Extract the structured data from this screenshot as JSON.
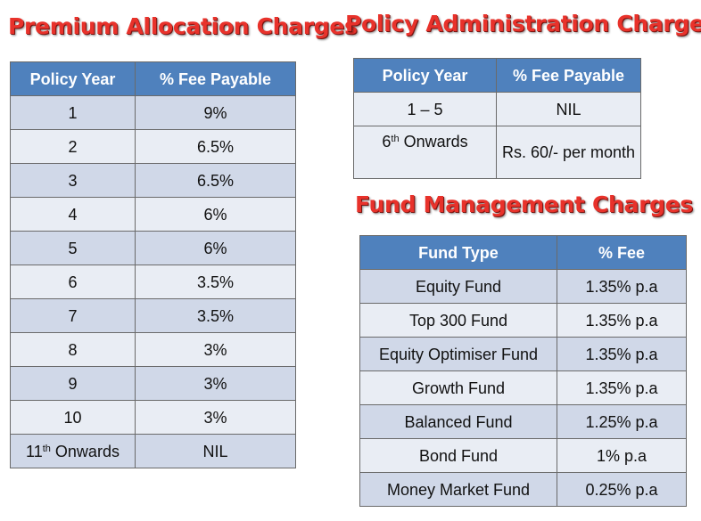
{
  "premium_allocation": {
    "title": "Premium Allocation Charges",
    "headers": [
      "Policy Year",
      "% Fee Payable"
    ],
    "rows": [
      {
        "year": "1",
        "fee": "9%"
      },
      {
        "year": "2",
        "fee": "6.5%"
      },
      {
        "year": "3",
        "fee": "6.5%"
      },
      {
        "year": "4",
        "fee": "6%"
      },
      {
        "year": "5",
        "fee": "6%"
      },
      {
        "year": "6",
        "fee": "3.5%"
      },
      {
        "year": "7",
        "fee": "3.5%"
      },
      {
        "year": "8",
        "fee": "3%"
      },
      {
        "year": "9",
        "fee": "3%"
      },
      {
        "year": "10",
        "fee": "3%"
      },
      {
        "year_num": "11",
        "year_sup": "th",
        "year_suffix": " Onwards",
        "fee": "NIL"
      }
    ]
  },
  "policy_administration": {
    "title": "Policy Administration Charges",
    "headers": [
      "Policy Year",
      "% Fee Payable"
    ],
    "row1": {
      "year": "1 – 5",
      "fee": "NIL"
    },
    "row2": {
      "year_num": "6",
      "year_sup": "th",
      "year_suffix": " Onwards",
      "fee": "Rs. 60/- per month"
    }
  },
  "fund_management": {
    "title": "Fund Management Charges",
    "headers": [
      "Fund Type",
      "% Fee"
    ],
    "rows": [
      {
        "fund": "Equity Fund",
        "fee": "1.35% p.a"
      },
      {
        "fund": "Top 300 Fund",
        "fee": "1.35% p.a"
      },
      {
        "fund": "Equity Optimiser Fund",
        "fee": "1.35% p.a"
      },
      {
        "fund": "Growth Fund",
        "fee": "1.35% p.a"
      },
      {
        "fund": "Balanced Fund",
        "fee": "1.25% p.a"
      },
      {
        "fund": "Bond Fund",
        "fee": "1% p.a"
      },
      {
        "fund": "Money Market Fund",
        "fee": "0.25% p.a"
      }
    ]
  },
  "colors": {
    "heading_red": "#e8322b",
    "header_blue": "#4f81bd",
    "row_band_dark": "#d0d8e8",
    "row_band_light": "#e9edf4"
  }
}
